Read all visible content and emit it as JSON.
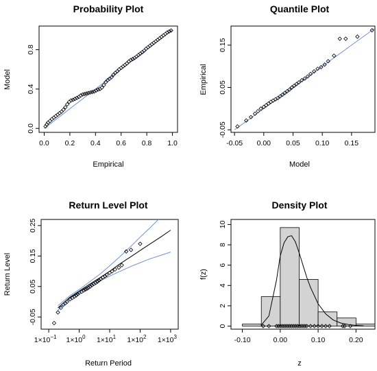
{
  "chart_data": [
    {
      "type": "scatter",
      "title": "Probability Plot",
      "xlabel": "Empirical",
      "ylabel": "Model",
      "xlim": [
        0,
        1
      ],
      "ylim": [
        0,
        1
      ],
      "xticks": [
        "0.0",
        "0.2",
        "0.4",
        "0.6",
        "0.8",
        "1.0"
      ],
      "yticks": [
        "0.0",
        "0.4",
        "0.8"
      ],
      "reference_line": {
        "color": "#6b8fd6",
        "x": [
          0,
          1
        ],
        "y": [
          0,
          1
        ]
      },
      "points": {
        "x": [
          0.01,
          0.02,
          0.03,
          0.045,
          0.06,
          0.075,
          0.09,
          0.105,
          0.12,
          0.135,
          0.15,
          0.165,
          0.18,
          0.195,
          0.21,
          0.225,
          0.24,
          0.255,
          0.27,
          0.285,
          0.3,
          0.315,
          0.33,
          0.345,
          0.36,
          0.375,
          0.39,
          0.405,
          0.42,
          0.435,
          0.45,
          0.465,
          0.48,
          0.495,
          0.51,
          0.525,
          0.54,
          0.555,
          0.57,
          0.585,
          0.6,
          0.615,
          0.63,
          0.645,
          0.66,
          0.675,
          0.69,
          0.705,
          0.72,
          0.735,
          0.75,
          0.765,
          0.78,
          0.795,
          0.81,
          0.825,
          0.84,
          0.855,
          0.87,
          0.885,
          0.9,
          0.915,
          0.93,
          0.945,
          0.96,
          0.975,
          0.99
        ],
        "y": [
          0.02,
          0.04,
          0.06,
          0.075,
          0.095,
          0.11,
          0.125,
          0.14,
          0.155,
          0.17,
          0.19,
          0.215,
          0.245,
          0.27,
          0.285,
          0.29,
          0.3,
          0.31,
          0.32,
          0.335,
          0.345,
          0.35,
          0.355,
          0.36,
          0.365,
          0.37,
          0.375,
          0.385,
          0.395,
          0.4,
          0.415,
          0.44,
          0.47,
          0.49,
          0.505,
          0.52,
          0.545,
          0.565,
          0.58,
          0.6,
          0.615,
          0.63,
          0.645,
          0.66,
          0.68,
          0.695,
          0.705,
          0.715,
          0.73,
          0.745,
          0.76,
          0.775,
          0.79,
          0.81,
          0.825,
          0.84,
          0.855,
          0.87,
          0.885,
          0.9,
          0.915,
          0.93,
          0.945,
          0.96,
          0.975,
          0.985,
          0.995
        ]
      }
    },
    {
      "type": "scatter",
      "title": "Quantile Plot",
      "xlabel": "Model",
      "ylabel": "Empirical",
      "xlim": [
        -0.05,
        0.19
      ],
      "ylim": [
        -0.05,
        0.19
      ],
      "xticks": [
        "-0.05",
        "0.00",
        "0.05",
        "0.10",
        "0.15"
      ],
      "yticks": [
        "-0.05",
        "0.05",
        "0.15"
      ],
      "reference_line": {
        "color": "#6b8fd6",
        "x": [
          -0.05,
          0.19
        ],
        "y": [
          -0.05,
          0.19
        ]
      },
      "points": {
        "x": [
          -0.045,
          -0.03,
          -0.022,
          -0.015,
          -0.01,
          -0.005,
          0.0,
          0.004,
          0.008,
          0.012,
          0.016,
          0.02,
          0.024,
          0.028,
          0.032,
          0.036,
          0.04,
          0.044,
          0.048,
          0.052,
          0.056,
          0.06,
          0.065,
          0.07,
          0.075,
          0.08,
          0.086,
          0.092,
          0.098,
          0.104,
          0.11,
          0.12,
          0.13,
          0.14,
          0.16,
          0.185
        ],
        "y": [
          -0.042,
          -0.028,
          -0.02,
          -0.012,
          -0.006,
          0.0,
          0.004,
          0.008,
          0.012,
          0.016,
          0.019,
          0.022,
          0.025,
          0.029,
          0.033,
          0.037,
          0.041,
          0.045,
          0.05,
          0.054,
          0.058,
          0.062,
          0.067,
          0.071,
          0.076,
          0.082,
          0.088,
          0.094,
          0.098,
          0.104,
          0.112,
          0.125,
          0.165,
          0.165,
          0.17,
          0.185
        ]
      }
    },
    {
      "type": "line",
      "title": "Return Level Plot",
      "xlabel": "Return Period",
      "ylabel": "Return Level",
      "xscale": "log",
      "xlim": [
        0.1,
        1000
      ],
      "ylim": [
        -0.09,
        0.27
      ],
      "xticks": [
        {
          "base": "1×10",
          "exp": "−1",
          "value": 0.1
        },
        {
          "base": "1×10",
          "exp": "0",
          "value": 1
        },
        {
          "base": "1×10",
          "exp": "1",
          "value": 10
        },
        {
          "base": "1×10",
          "exp": "2",
          "value": 100
        },
        {
          "base": "1×10",
          "exp": "3",
          "value": 1000
        }
      ],
      "yticks": [
        "-0.05",
        "0.05",
        "0.15",
        "0.25"
      ],
      "series": [
        {
          "role": "estimate",
          "color": "#000000",
          "x": [
            0.2,
            0.5,
            1,
            2,
            5,
            10,
            20,
            50,
            100,
            200,
            500,
            1000
          ],
          "y": [
            -0.02,
            0.015,
            0.035,
            0.055,
            0.08,
            0.1,
            0.122,
            0.148,
            0.168,
            0.188,
            0.214,
            0.235
          ]
        },
        {
          "role": "upper",
          "color": "#6b8fd6",
          "x": [
            0.2,
            0.5,
            1,
            2,
            5,
            10,
            20,
            50,
            100,
            200,
            500,
            1000
          ],
          "y": [
            -0.013,
            0.02,
            0.04,
            0.062,
            0.092,
            0.118,
            0.145,
            0.182,
            0.212,
            0.24,
            0.28,
            0.31
          ]
        },
        {
          "role": "lower",
          "color": "#6b8fd6",
          "x": [
            0.2,
            0.5,
            1,
            2,
            5,
            10,
            20,
            50,
            100,
            200,
            500,
            1000
          ],
          "y": [
            -0.028,
            0.01,
            0.03,
            0.049,
            0.069,
            0.084,
            0.098,
            0.116,
            0.128,
            0.14,
            0.153,
            0.163
          ]
        }
      ],
      "points": {
        "x": [
          0.15,
          0.2,
          0.25,
          0.3,
          0.35,
          0.4,
          0.5,
          0.6,
          0.7,
          0.8,
          0.9,
          1.0,
          1.2,
          1.4,
          1.6,
          1.8,
          2.0,
          2.3,
          2.6,
          3.0,
          3.5,
          4.0,
          4.5,
          5.0,
          6.0,
          7.0,
          8.0,
          10,
          12,
          15,
          20,
          25,
          35,
          50,
          100
        ],
        "y": [
          -0.07,
          -0.035,
          -0.02,
          -0.01,
          -0.005,
          0.0,
          0.008,
          0.013,
          0.017,
          0.021,
          0.025,
          0.029,
          0.033,
          0.037,
          0.04,
          0.043,
          0.046,
          0.05,
          0.054,
          0.058,
          0.062,
          0.066,
          0.07,
          0.074,
          0.08,
          0.084,
          0.088,
          0.095,
          0.1,
          0.106,
          0.112,
          0.12,
          0.165,
          0.17,
          0.19
        ]
      }
    },
    {
      "type": "bar",
      "title": "Density Plot",
      "xlabel": "z",
      "ylabel": "f(z)",
      "xlim": [
        -0.1,
        0.25
      ],
      "ylim": [
        0,
        10
      ],
      "xticks": [
        "-0.10",
        "0.00",
        "0.10",
        "0.20"
      ],
      "yticks": [
        "0",
        "2",
        "4",
        "6",
        "8",
        "10"
      ],
      "bins": [
        {
          "start": -0.1,
          "end": -0.05,
          "value": 0.2
        },
        {
          "start": -0.05,
          "end": 0.0,
          "value": 2.9
        },
        {
          "start": 0.0,
          "end": 0.05,
          "value": 9.7
        },
        {
          "start": 0.05,
          "end": 0.1,
          "value": 4.6
        },
        {
          "start": 0.1,
          "end": 0.15,
          "value": 1.4
        },
        {
          "start": 0.15,
          "end": 0.2,
          "value": 0.8
        },
        {
          "start": 0.2,
          "end": 0.25,
          "value": 0.2
        }
      ],
      "density_curve": {
        "x": [
          -0.05,
          -0.03,
          -0.01,
          0.0,
          0.01,
          0.02,
          0.03,
          0.04,
          0.05,
          0.06,
          0.07,
          0.08,
          0.1,
          0.12,
          0.14,
          0.16,
          0.18,
          0.2,
          0.22
        ],
        "y": [
          0.1,
          1.0,
          4.5,
          6.9,
          8.2,
          8.8,
          8.9,
          8.3,
          7.2,
          6.0,
          4.8,
          3.8,
          2.2,
          1.2,
          0.6,
          0.3,
          0.15,
          0.07,
          0.03
        ]
      },
      "rug": [
        -0.045,
        -0.03,
        -0.01,
        -0.005,
        0.0,
        0.005,
        0.01,
        0.015,
        0.02,
        0.025,
        0.03,
        0.035,
        0.04,
        0.045,
        0.05,
        0.055,
        0.06,
        0.065,
        0.07,
        0.08,
        0.09,
        0.1,
        0.11,
        0.12,
        0.13,
        0.165,
        0.17,
        0.185
      ]
    }
  ]
}
